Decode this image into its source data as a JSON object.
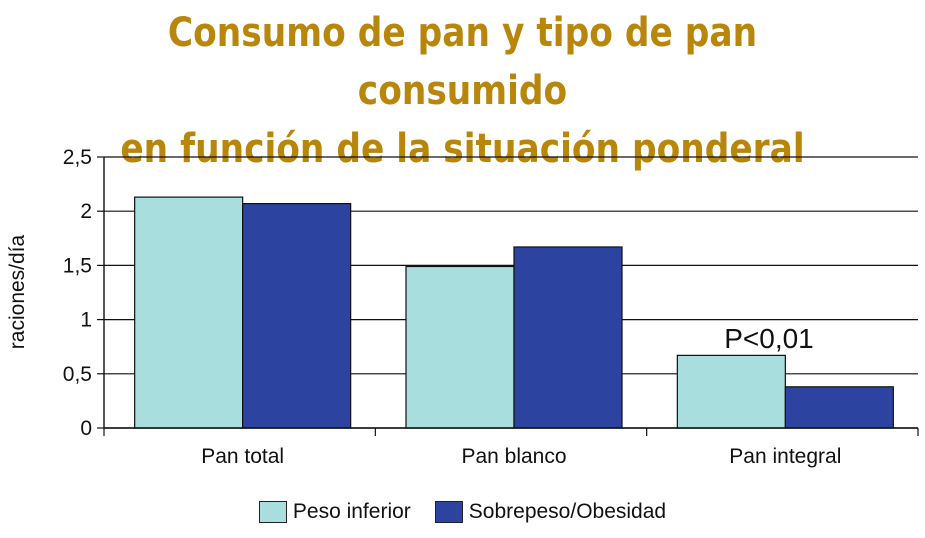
{
  "title": {
    "line1": "Consumo de pan y tipo de pan consumido",
    "line2": "en función de la situación ponderal"
  },
  "chart_data": {
    "type": "bar",
    "categories": [
      "Pan total",
      "Pan blanco",
      "Pan integral"
    ],
    "series": [
      {
        "name": "Peso inferior",
        "values": [
          2.13,
          1.49,
          0.67
        ],
        "color": "#a8dede"
      },
      {
        "name": "Sobrepeso/Obesidad",
        "values": [
          2.07,
          1.67,
          0.38
        ],
        "color": "#2c44a0"
      }
    ],
    "ylabel": "raciones/día",
    "xlabel": "",
    "ylim": [
      0,
      2.5
    ],
    "yticks": [
      "0",
      "0,5",
      "1",
      "1,5",
      "2",
      "2,5"
    ],
    "grid": true,
    "legend_position": "bottom",
    "annotation": "P<0,01"
  }
}
